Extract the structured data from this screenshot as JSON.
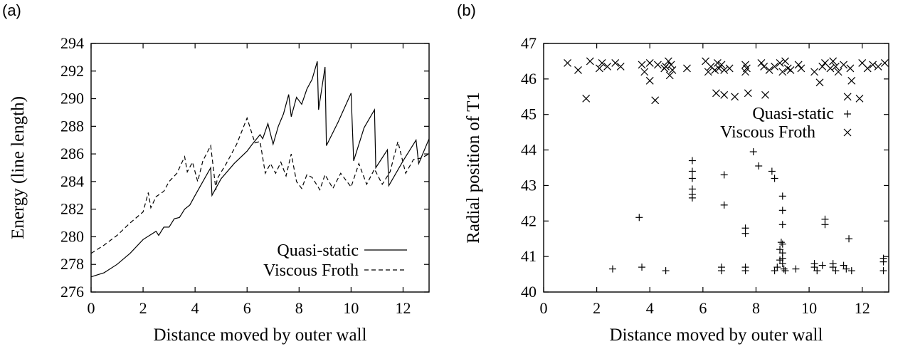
{
  "chart_data": [
    {
      "panel": "(a)",
      "type": "line",
      "xlabel": "Distance moved by outer wall",
      "ylabel": "Energy (line length)",
      "xlim": [
        0,
        13
      ],
      "ylim": [
        276,
        294
      ],
      "xticks": [
        0,
        2,
        4,
        6,
        8,
        10,
        12
      ],
      "yticks": [
        276,
        278,
        280,
        282,
        284,
        286,
        288,
        290,
        292,
        294
      ],
      "legend_position": "bottom-right",
      "series": [
        {
          "name": "Quasi-static",
          "style": "solid",
          "x": [
            0,
            0.5,
            1,
            1.5,
            2,
            2.5,
            2.6,
            2.8,
            3.0,
            3.2,
            3.4,
            3.6,
            3.8,
            4.0,
            4.3,
            4.6,
            4.65,
            5.0,
            5.5,
            6.0,
            6.2,
            6.5,
            6.6,
            6.8,
            7.0,
            7.2,
            7.4,
            7.6,
            7.7,
            7.9,
            8.1,
            8.3,
            8.5,
            8.7,
            8.75,
            9.0,
            9.05,
            9.5,
            10.0,
            10.1,
            10.5,
            10.9,
            10.95,
            11.4,
            11.45,
            12.0,
            12.5,
            12.6,
            13.0
          ],
          "y": [
            277.1,
            277.4,
            278.0,
            278.8,
            279.8,
            280.4,
            280.1,
            280.7,
            280.7,
            281.3,
            281.4,
            282.0,
            282.3,
            283.0,
            284.0,
            285.0,
            283.0,
            284.2,
            285.3,
            286.2,
            286.7,
            287.4,
            287.1,
            288.2,
            286.7,
            288.0,
            288.9,
            290.3,
            288.7,
            290.1,
            289.6,
            290.7,
            291.4,
            292.7,
            289.2,
            292.3,
            286.6,
            288.3,
            290.4,
            285.5,
            287.9,
            289.2,
            285.0,
            286.3,
            283.7,
            285.5,
            287.0,
            285.3,
            287.1
          ]
        },
        {
          "name": "Viscous Froth",
          "style": "dashed",
          "x": [
            0,
            0.5,
            1,
            1.5,
            2,
            2.2,
            2.3,
            2.5,
            2.8,
            3.0,
            3.3,
            3.6,
            3.7,
            3.9,
            4.1,
            4.3,
            4.6,
            4.8,
            4.85,
            5.2,
            5.6,
            6.0,
            6.3,
            6.5,
            6.7,
            6.9,
            7.1,
            7.3,
            7.5,
            7.7,
            7.9,
            8.1,
            8.3,
            8.5,
            8.8,
            9.0,
            9.3,
            9.6,
            10.0,
            10.3,
            10.6,
            10.9,
            11.2,
            11.5,
            11.8,
            12.1,
            12.4,
            12.7,
            13.0
          ],
          "y": [
            278.8,
            279.4,
            280.1,
            281.0,
            281.8,
            283.2,
            282.1,
            282.9,
            283.3,
            284.0,
            284.6,
            285.8,
            284.7,
            285.4,
            284.0,
            285.5,
            286.6,
            283.4,
            284.2,
            285.3,
            286.7,
            288.6,
            286.8,
            286.9,
            284.6,
            285.3,
            284.6,
            285.4,
            284.4,
            286.0,
            284.0,
            283.5,
            284.5,
            284.3,
            283.4,
            284.5,
            283.5,
            284.6,
            283.6,
            285.3,
            283.8,
            284.9,
            283.8,
            284.7,
            286.9,
            284.6,
            285.6,
            285.7,
            286.0
          ]
        }
      ]
    },
    {
      "panel": "(b)",
      "type": "scatter",
      "xlabel": "Distance moved by outer wall",
      "ylabel": "Radial position of T1",
      "xlim": [
        0,
        13
      ],
      "ylim": [
        40,
        47
      ],
      "xticks": [
        0,
        2,
        4,
        6,
        8,
        10,
        12
      ],
      "yticks": [
        40,
        41,
        42,
        43,
        44,
        45,
        46,
        47
      ],
      "legend_position": "upper-right",
      "series": [
        {
          "name": "Quasi-static",
          "marker": "plus",
          "points": [
            [
              2.6,
              40.65
            ],
            [
              3.6,
              42.1
            ],
            [
              3.7,
              40.7
            ],
            [
              4.6,
              40.6
            ],
            [
              5.6,
              43.7
            ],
            [
              5.6,
              43.4
            ],
            [
              5.6,
              43.2
            ],
            [
              5.6,
              42.9
            ],
            [
              5.6,
              42.75
            ],
            [
              5.6,
              42.65
            ],
            [
              6.7,
              40.7
            ],
            [
              6.7,
              40.6
            ],
            [
              6.8,
              43.3
            ],
            [
              6.8,
              42.45
            ],
            [
              7.6,
              41.8
            ],
            [
              7.6,
              41.65
            ],
            [
              7.6,
              40.7
            ],
            [
              7.6,
              40.6
            ],
            [
              7.9,
              43.95
            ],
            [
              8.1,
              43.55
            ],
            [
              8.6,
              43.4
            ],
            [
              8.7,
              43.2
            ],
            [
              8.7,
              40.6
            ],
            [
              8.8,
              40.7
            ],
            [
              8.9,
              40.9
            ],
            [
              8.9,
              41.2
            ],
            [
              8.95,
              41.4
            ],
            [
              9.0,
              42.7
            ],
            [
              9.0,
              42.3
            ],
            [
              9.0,
              41.9
            ],
            [
              9.0,
              41.35
            ],
            [
              9.0,
              41.1
            ],
            [
              9.0,
              40.95
            ],
            [
              9.0,
              40.8
            ],
            [
              9.05,
              40.65
            ],
            [
              9.1,
              40.6
            ],
            [
              9.5,
              40.65
            ],
            [
              10.2,
              40.8
            ],
            [
              10.2,
              40.7
            ],
            [
              10.3,
              40.6
            ],
            [
              10.5,
              40.75
            ],
            [
              10.6,
              42.05
            ],
            [
              10.6,
              41.9
            ],
            [
              10.9,
              40.8
            ],
            [
              10.9,
              40.7
            ],
            [
              11.0,
              40.6
            ],
            [
              11.3,
              40.75
            ],
            [
              11.4,
              40.65
            ],
            [
              11.5,
              41.5
            ],
            [
              11.6,
              40.6
            ],
            [
              12.8,
              40.95
            ],
            [
              12.8,
              40.85
            ],
            [
              12.8,
              40.6
            ]
          ]
        },
        {
          "name": "Viscous Froth",
          "marker": "cross",
          "points": [
            [
              0.9,
              46.45
            ],
            [
              1.3,
              46.25
            ],
            [
              1.6,
              45.45
            ],
            [
              1.75,
              46.5
            ],
            [
              2.1,
              46.3
            ],
            [
              2.2,
              46.45
            ],
            [
              2.4,
              46.35
            ],
            [
              2.7,
              46.45
            ],
            [
              2.9,
              46.35
            ],
            [
              3.7,
              46.4
            ],
            [
              3.8,
              46.2
            ],
            [
              4.0,
              45.95
            ],
            [
              4.0,
              46.45
            ],
            [
              4.2,
              45.4
            ],
            [
              4.3,
              46.4
            ],
            [
              4.55,
              46.3
            ],
            [
              4.6,
              46.35
            ],
            [
              4.7,
              46.5
            ],
            [
              4.75,
              46.1
            ],
            [
              4.8,
              46.4
            ],
            [
              4.85,
              46.25
            ],
            [
              5.4,
              46.3
            ],
            [
              6.1,
              46.5
            ],
            [
              6.2,
              46.2
            ],
            [
              6.3,
              46.35
            ],
            [
              6.45,
              46.25
            ],
            [
              6.5,
              45.6
            ],
            [
              6.55,
              46.45
            ],
            [
              6.6,
              46.3
            ],
            [
              6.7,
              46.4
            ],
            [
              6.8,
              46.25
            ],
            [
              6.8,
              45.55
            ],
            [
              7.0,
              46.3
            ],
            [
              7.2,
              45.5
            ],
            [
              7.6,
              46.4
            ],
            [
              7.6,
              46.2
            ],
            [
              7.65,
              46.3
            ],
            [
              7.7,
              45.6
            ],
            [
              8.2,
              46.45
            ],
            [
              8.3,
              46.35
            ],
            [
              8.35,
              45.55
            ],
            [
              8.5,
              46.25
            ],
            [
              8.7,
              46.35
            ],
            [
              8.9,
              46.45
            ],
            [
              9.0,
              46.2
            ],
            [
              9.1,
              46.5
            ],
            [
              9.2,
              46.3
            ],
            [
              9.3,
              46.25
            ],
            [
              9.6,
              46.4
            ],
            [
              9.7,
              46.3
            ],
            [
              10.2,
              46.2
            ],
            [
              10.4,
              45.9
            ],
            [
              10.5,
              46.35
            ],
            [
              10.6,
              46.45
            ],
            [
              10.8,
              46.3
            ],
            [
              10.9,
              46.5
            ],
            [
              11.0,
              46.35
            ],
            [
              11.1,
              46.2
            ],
            [
              11.3,
              46.4
            ],
            [
              11.45,
              45.5
            ],
            [
              11.55,
              46.3
            ],
            [
              11.6,
              45.95
            ],
            [
              11.9,
              45.45
            ],
            [
              12.0,
              46.45
            ],
            [
              12.2,
              46.3
            ],
            [
              12.4,
              46.4
            ],
            [
              12.6,
              46.35
            ],
            [
              12.85,
              46.45
            ]
          ]
        }
      ]
    }
  ]
}
